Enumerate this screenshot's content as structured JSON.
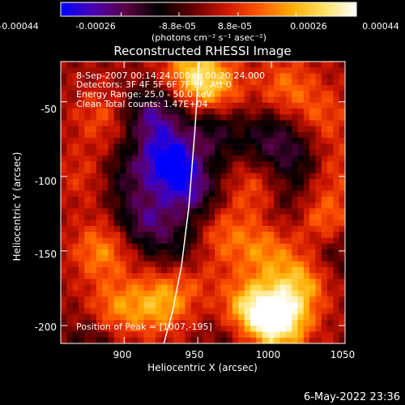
{
  "colorbar": {
    "tick_labels": [
      "-0.00044",
      "-0.00026",
      "-8.8e-05",
      "8.8e-05",
      "0.00026",
      "0.00044"
    ],
    "tick_values": [
      -0.00044,
      -0.00026,
      -8.8e-05,
      8.8e-05,
      0.00026,
      0.00044
    ],
    "range": [
      -0.00044,
      0.00044
    ],
    "units_text": "(photons cm⁻² s⁻¹ asec⁻²)",
    "colors": [
      "#0000ff",
      "#4b00b0",
      "#5a0040",
      "#000000",
      "#600000",
      "#cc1500",
      "#ff5500",
      "#ffaa00",
      "#ffe060",
      "#ffffff"
    ]
  },
  "chart_data": {
    "type": "heatmap",
    "title": "Reconstructed RHESSI Image",
    "xlabel": "Heliocentric X (arcsec)",
    "ylabel": "Heliocentric Y (arcsec)",
    "xlim": [
      857,
      1050
    ],
    "ylim": [
      -212,
      -23
    ],
    "x_ticks": [
      900,
      950,
      1000,
      1050
    ],
    "y_ticks": [
      -50,
      -100,
      -150,
      -200
    ],
    "x_tick_labels": [
      "900",
      "950",
      "1000",
      "1050"
    ],
    "y_tick_labels": [
      "-50",
      "-100",
      "-150",
      "-200"
    ],
    "annotations": [
      "8-Sep-2007 00:14:24.000 to 00:20:24.000",
      "Detectors: 3F 4F 5F 6F 7F 8F, Att 0",
      "Energy Range: 25.0 - 50.0 keV",
      "Clean    Total counts: 1.47E+04"
    ],
    "peak_label": "Position of Peak = [1007,-195]",
    "peak": [
      1007,
      -195
    ],
    "limb_curve": {
      "x": [
        951,
        948,
        944,
        939,
        933,
        927
      ],
      "y": [
        -23,
        -70,
        -120,
        -160,
        -190,
        -212
      ]
    },
    "pixel_grid": {
      "nx": 48,
      "ny": 48
    },
    "hot_spots": [
      {
        "x": 1005,
        "y": -196,
        "value": 0.00044
      },
      {
        "x": 985,
        "y": -190,
        "value": 0.00032
      },
      {
        "x": 1020,
        "y": -170,
        "value": 0.00024
      },
      {
        "x": 925,
        "y": -185,
        "value": 0.00024
      },
      {
        "x": 895,
        "y": -190,
        "value": 0.0002
      },
      {
        "x": 885,
        "y": -150,
        "value": 0.0002
      },
      {
        "x": 995,
        "y": -150,
        "value": 0.00018
      },
      {
        "x": 1035,
        "y": -130,
        "value": 0.0002
      },
      {
        "x": 965,
        "y": -140,
        "value": 0.00015
      },
      {
        "x": 990,
        "y": -110,
        "value": 0.00014
      },
      {
        "x": 960,
        "y": -40,
        "value": 0.00024
      },
      {
        "x": 945,
        "y": -30,
        "value": 0.00022
      },
      {
        "x": 1010,
        "y": -40,
        "value": 0.00016
      },
      {
        "x": 1035,
        "y": -60,
        "value": 0.00012
      },
      {
        "x": 885,
        "y": -60,
        "value": 0.00012
      },
      {
        "x": 875,
        "y": -100,
        "value": 0.0001
      },
      {
        "x": 1040,
        "y": -95,
        "value": 0.00012
      },
      {
        "x": 945,
        "y": -165,
        "value": 0.00012
      }
    ],
    "cold_spots": [
      {
        "x": 930,
        "y": -90,
        "value": -0.0004
      },
      {
        "x": 920,
        "y": -60,
        "value": -0.0003
      },
      {
        "x": 945,
        "y": -110,
        "value": -0.00028
      },
      {
        "x": 915,
        "y": -130,
        "value": -0.00026
      },
      {
        "x": 960,
        "y": -70,
        "value": -0.0002
      },
      {
        "x": 1000,
        "y": -75,
        "value": -0.0002
      },
      {
        "x": 1020,
        "y": -90,
        "value": -0.00016
      },
      {
        "x": 900,
        "y": -100,
        "value": -0.00016
      },
      {
        "x": 940,
        "y": -150,
        "value": -0.00018
      },
      {
        "x": 1040,
        "y": -150,
        "value": -0.00014
      },
      {
        "x": 880,
        "y": -210,
        "value": -0.00012
      },
      {
        "x": 975,
        "y": -205,
        "value": -0.00012
      },
      {
        "x": 1010,
        "y": -120,
        "value": -0.00012
      }
    ]
  },
  "footer": {
    "timestamp": "6-May-2022 23:36"
  }
}
